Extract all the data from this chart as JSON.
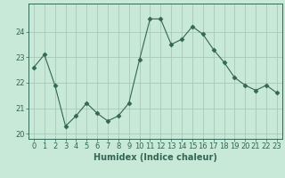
{
  "x": [
    0,
    1,
    2,
    3,
    4,
    5,
    6,
    7,
    8,
    9,
    10,
    11,
    12,
    13,
    14,
    15,
    16,
    17,
    18,
    19,
    20,
    21,
    22,
    23
  ],
  "y": [
    22.6,
    23.1,
    21.9,
    20.3,
    20.7,
    21.2,
    20.8,
    20.5,
    20.7,
    21.2,
    22.9,
    24.5,
    24.5,
    23.5,
    23.7,
    24.2,
    23.9,
    23.3,
    22.8,
    22.2,
    21.9,
    21.7,
    21.9,
    21.6
  ],
  "line_color": "#336655",
  "marker": "D",
  "marker_size": 2.5,
  "bg_color": "#c8e8d8",
  "grid_color": "#a8c8b8",
  "xlabel": "Humidex (Indice chaleur)",
  "ylim": [
    19.8,
    25.1
  ],
  "xlim": [
    -0.5,
    23.5
  ],
  "yticks": [
    20,
    21,
    22,
    23,
    24
  ],
  "xticks": [
    0,
    1,
    2,
    3,
    4,
    5,
    6,
    7,
    8,
    9,
    10,
    11,
    12,
    13,
    14,
    15,
    16,
    17,
    18,
    19,
    20,
    21,
    22,
    23
  ],
  "xlabel_fontsize": 7,
  "tick_fontsize": 6
}
